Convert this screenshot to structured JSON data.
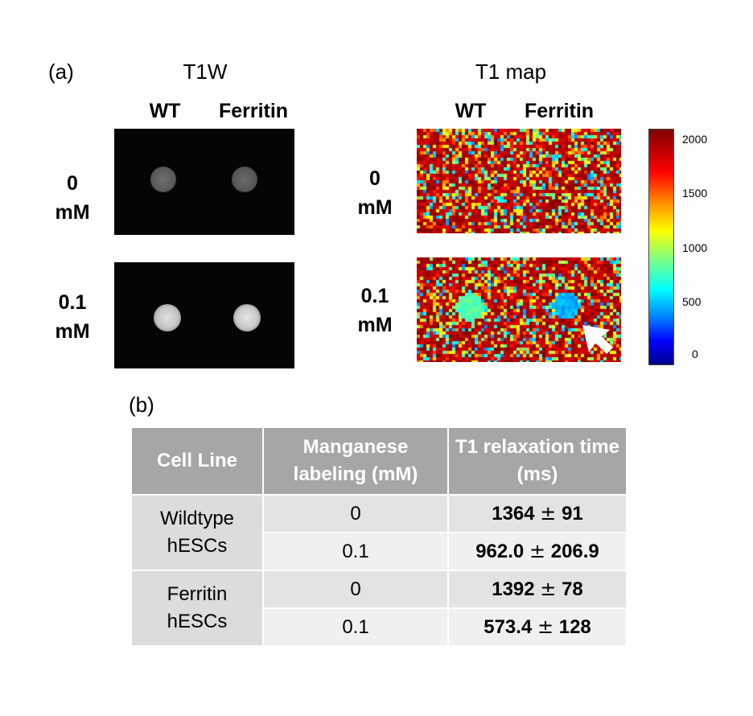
{
  "panel_a": {
    "label": "(a)",
    "t1w": {
      "title": "T1W",
      "col_labels": [
        "WT",
        "Ferritin"
      ],
      "row_labels": [
        [
          "0",
          "mM"
        ],
        [
          "0.1",
          "mM"
        ]
      ]
    },
    "t1map": {
      "title": "T1 map",
      "col_labels": [
        "WT",
        "Ferritin"
      ],
      "row_labels": [
        [
          "0",
          "mM"
        ],
        [
          "0.1",
          "mM"
        ]
      ],
      "colorbar_ticks": [
        "2000",
        "1500",
        "1000",
        "500",
        "0"
      ],
      "colorbar_range": [
        0,
        2000
      ]
    }
  },
  "panel_b": {
    "label": "(b)",
    "headers": [
      "Cell Line",
      "Manganese labeling (mM)",
      "T1 relaxation time (ms)"
    ],
    "groups": [
      {
        "cell_line": "Wildtype hESCs",
        "rows": [
          {
            "labeling": "0",
            "mean": "1364",
            "pm": "±",
            "sd": "91"
          },
          {
            "labeling": "0.1",
            "mean": "962.0",
            "pm": "±",
            "sd": "206.9"
          }
        ]
      },
      {
        "cell_line": "Ferritin hESCs",
        "rows": [
          {
            "labeling": "0",
            "mean": "1392",
            "pm": "±",
            "sd": "78"
          },
          {
            "labeling": "0.1",
            "mean": "573.4",
            "pm": "±",
            "sd": "128"
          }
        ]
      }
    ]
  }
}
